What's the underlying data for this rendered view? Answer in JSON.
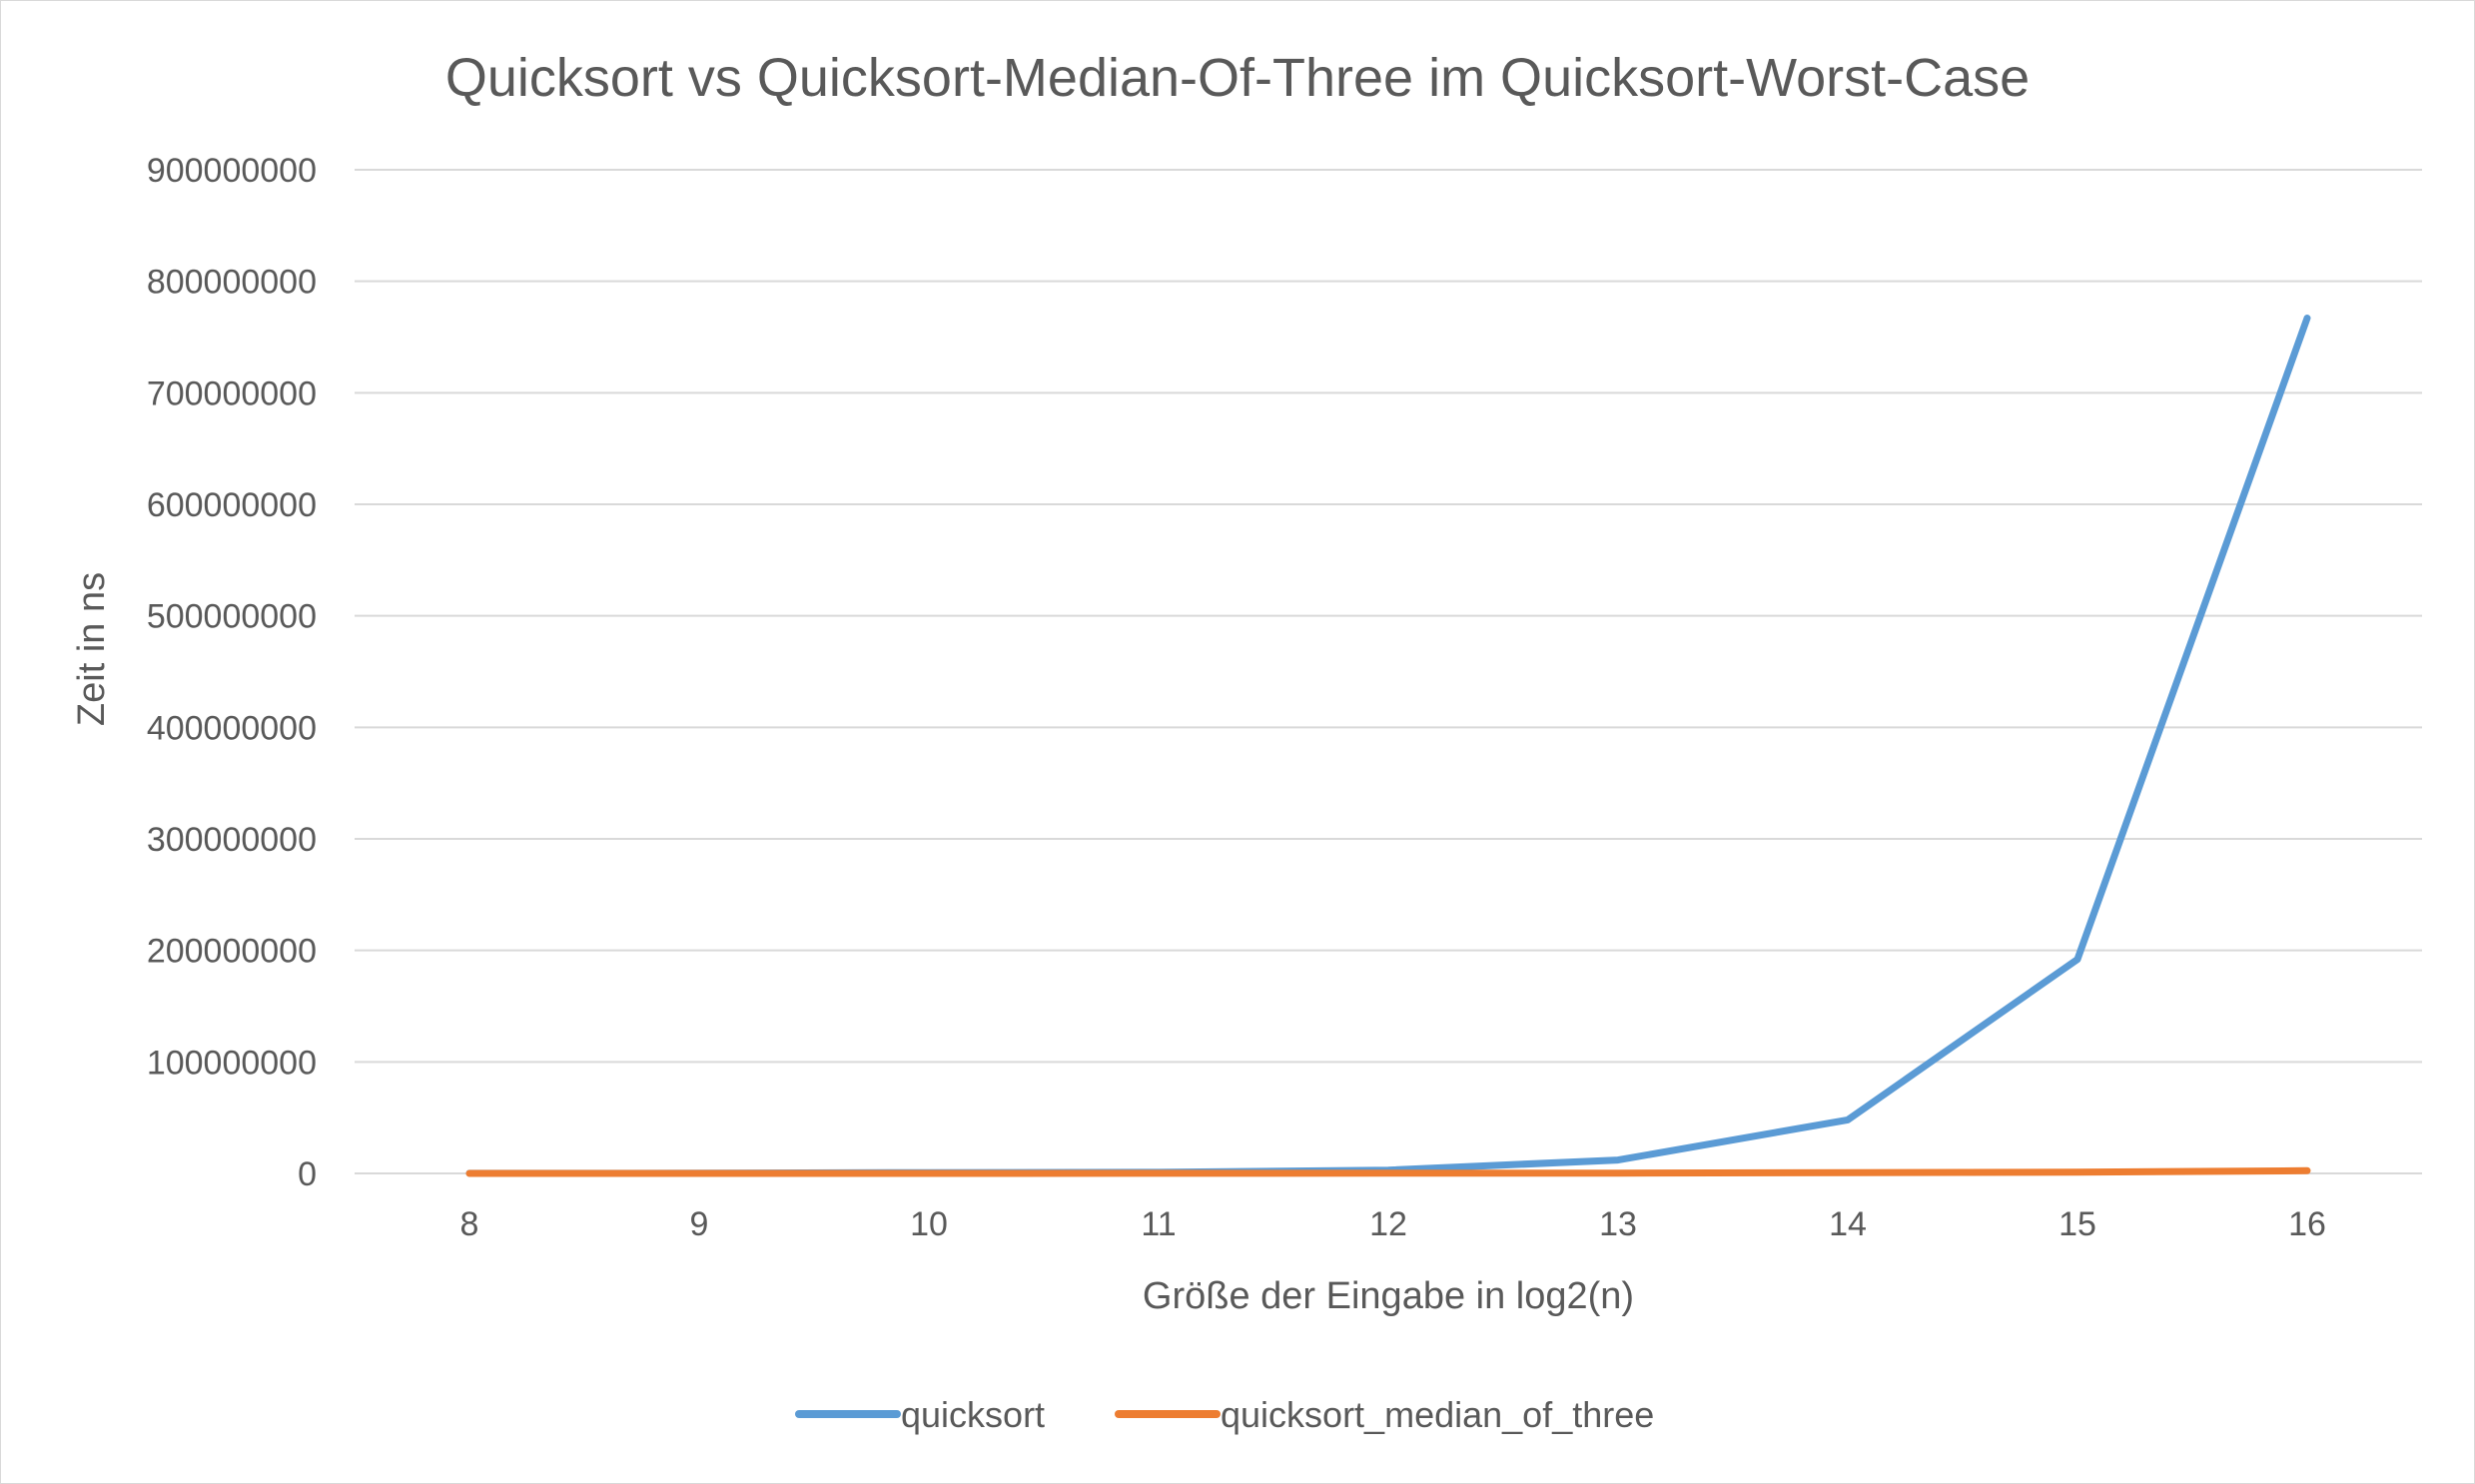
{
  "chart_data": {
    "type": "line",
    "title": "Quicksort vs Quicksort-Median-Of-Three im Quicksort-Worst-Case",
    "xlabel": "Größe der Eingabe in log2(n)",
    "ylabel": "Zeit in ns",
    "categories": [
      "8",
      "9",
      "10",
      "11",
      "12",
      "13",
      "14",
      "15",
      "16"
    ],
    "ylim": [
      0,
      900000000
    ],
    "yticks": [
      "0",
      "100000000",
      "200000000",
      "300000000",
      "400000000",
      "500000000",
      "600000000",
      "700000000",
      "800000000",
      "900000000"
    ],
    "grid": true,
    "legend_position": "bottom",
    "series": [
      {
        "name": "quicksort",
        "color": "#5b9bd5",
        "values": [
          50000,
          200000,
          700000,
          1000000,
          3000000,
          12000000,
          48000000,
          192000000,
          767000000
        ]
      },
      {
        "name": "quicksort_median_of_three",
        "color": "#ed7d31",
        "values": [
          10000,
          20000,
          40000,
          80000,
          150000,
          300000,
          600000,
          1200000,
          2400000
        ]
      }
    ]
  }
}
